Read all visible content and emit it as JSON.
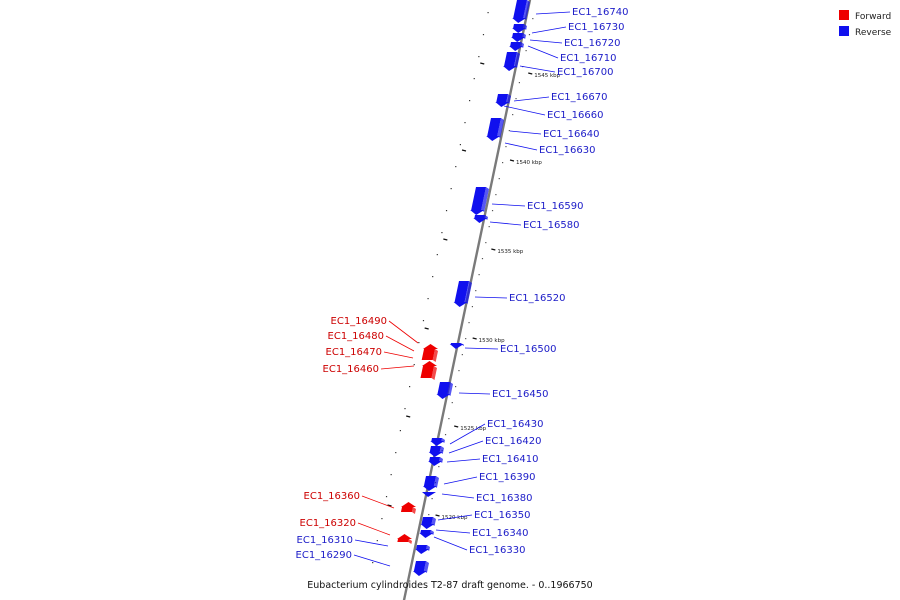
{
  "caption": "Eubacterium cylindroides T2-87 draft genome. - 0..1966750",
  "colors": {
    "forward": "#ee0000",
    "reverse": "#1010ee",
    "axis": "#7a7a7a"
  },
  "legend": [
    {
      "label": "Forward",
      "color": "#ee0000"
    },
    {
      "label": "Reverse",
      "color": "#1010ee"
    }
  ],
  "ticks": [
    "1545 kbp",
    "1540 kbp",
    "1535 kbp",
    "1530 kbp",
    "1525 kbp",
    "1520 kbp"
  ],
  "genes": {
    "forward": [
      "EC1_16490",
      "EC1_16480",
      "EC1_16470",
      "EC1_16460",
      "EC1_16360",
      "EC1_16320"
    ],
    "reverse": [
      "EC1_16740",
      "EC1_16730",
      "EC1_16720",
      "EC1_16710",
      "EC1_16700",
      "EC1_16670",
      "EC1_16660",
      "EC1_16640",
      "EC1_16630",
      "EC1_16590",
      "EC1_16580",
      "EC1_16520",
      "EC1_16500",
      "EC1_16450",
      "EC1_16430",
      "EC1_16420",
      "EC1_16410",
      "EC1_16390",
      "EC1_16380",
      "EC1_16350",
      "EC1_16340",
      "EC1_16330",
      "EC1_16310",
      "EC1_16290"
    ]
  }
}
